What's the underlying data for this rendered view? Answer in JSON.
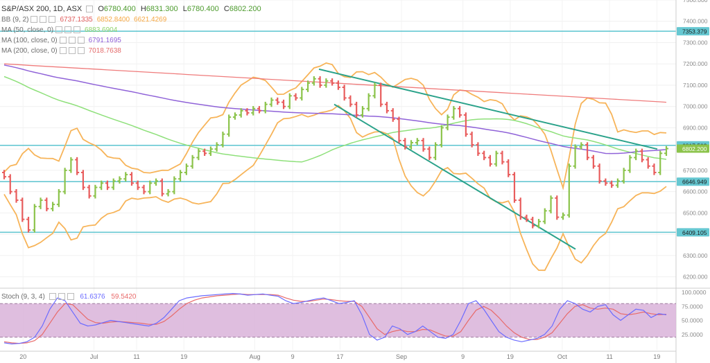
{
  "header": {
    "symbol": "S&P/ASX 200, 1D, ASX",
    "open_label": "O",
    "open": "6780.400",
    "high_label": "H",
    "high": "6831.300",
    "low_label": "L",
    "low": "6780.400",
    "close_label": "C",
    "close": "6802.200"
  },
  "indicators": [
    {
      "label": "BB (9, 2)",
      "values": [
        "6737.1335",
        "6852.8400",
        "6621.4269"
      ],
      "colors": [
        "#e05a5a",
        "#f5a742",
        "#f5a742"
      ]
    },
    {
      "label": "MA (50, close, 0)",
      "values": [
        "6883.6904"
      ],
      "colors": [
        "#8fd26b"
      ]
    },
    {
      "label": "MA (100, close, 0)",
      "values": [
        "6791.1695"
      ],
      "colors": [
        "#8e5ed6"
      ]
    },
    {
      "label": "MA (200, close, 0)",
      "values": [
        "7018.7638"
      ],
      "colors": [
        "#e46a6a"
      ]
    }
  ],
  "stoch_legend": {
    "label": "Stoch (9, 3, 4)",
    "k": "61.6376",
    "d": "59.5420"
  },
  "colors": {
    "up": "#8bc34a",
    "down": "#e85c5c",
    "bb": "#f7b459",
    "ma50": "#8ee07a",
    "ma100": "#8f62d8",
    "ma200": "#ef7b7b",
    "hline": "#66c8d2",
    "trend": "#2aa28a",
    "stoch_fill": "#d9b3d9",
    "stoch_k": "#6b6bff",
    "stoch_d": "#e86a6a",
    "last_price": "#8bc34a"
  },
  "chart_data": [
    {
      "type": "candlestick",
      "title": "S&P/ASX 200, 1D, ASX",
      "ylim": [
        6150,
        7500
      ],
      "y_ticks": [
        "6200.000",
        "6300.000",
        "6400.000",
        "6500.000",
        "6600.000",
        "6700.000",
        "6800.000",
        "6900.000",
        "7000.000",
        "7100.000",
        "7200.000",
        "7300.000",
        "7400.000",
        "7500.000"
      ],
      "x_ticks": [
        "20",
        "Jul",
        "11",
        "19",
        "Aug",
        "9",
        "17",
        "Sep",
        "9",
        "19",
        "Oct",
        "11",
        "19"
      ],
      "price_labels": [
        {
          "label": "7353.379",
          "value": 7353.379
        },
        {
          "label": "6817.503",
          "value": 6817.503
        },
        {
          "label": "6802.200",
          "value": 6802.2
        },
        {
          "label": "6646.949",
          "value": 6646.949
        },
        {
          "label": "6409.105",
          "value": 6409.105
        }
      ],
      "horizontal_lines": [
        7353.379,
        6817.503,
        6646.949,
        6409.105
      ],
      "closes": [
        6670,
        6600,
        6560,
        6470,
        6420,
        6530,
        6560,
        6520,
        6540,
        6600,
        6700,
        6750,
        6690,
        6620,
        6580,
        6620,
        6640,
        6620,
        6650,
        6660,
        6680,
        6640,
        6620,
        6600,
        6640,
        6650,
        6590,
        6600,
        6660,
        6690,
        6720,
        6760,
        6790,
        6780,
        6800,
        6820,
        6870,
        6950,
        6960,
        6980,
        6970,
        6990,
        6980,
        7010,
        7030,
        7020,
        7000,
        7050,
        7040,
        7080,
        7110,
        7130,
        7100,
        7120,
        7110,
        7090,
        7040,
        7010,
        6960,
        6990,
        7050,
        7100,
        7010,
        6980,
        6940,
        6840,
        6810,
        6830,
        6840,
        6800,
        6760,
        6820,
        6900,
        6950,
        6990,
        6960,
        6870,
        6820,
        6780,
        6760,
        6730,
        6780,
        6740,
        6680,
        6560,
        6480,
        6470,
        6440,
        6460,
        6510,
        6570,
        6480,
        6490,
        6720,
        6810,
        6820,
        6760,
        6720,
        6650,
        6640,
        6630,
        6650,
        6700,
        6760,
        6790,
        6750,
        6720,
        6690,
        6780,
        6802.2
      ],
      "opens_note": "open equals previous close",
      "bb_mid": [
        6640,
        6630,
        6610,
        6590,
        6570,
        6560,
        6560,
        6570,
        6580,
        6600,
        6620,
        6630,
        6640,
        6640,
        6635,
        6630,
        6635,
        6630,
        6630,
        6635,
        6640,
        6640,
        6635,
        6630,
        6630,
        6635,
        6630,
        6625,
        6640,
        6650,
        6670,
        6690,
        6710,
        6730,
        6750,
        6770,
        6800,
        6830,
        6860,
        6890,
        6910,
        6930,
        6950,
        6970,
        6980,
        6990,
        7000,
        7010,
        7020,
        7040,
        7050,
        7070,
        7080,
        7090,
        7090,
        7080,
        7060,
        7040,
        7020,
        7010,
        7010,
        7020,
        7010,
        6990,
        6970,
        6930,
        6900,
        6880,
        6860,
        6840,
        6820,
        6820,
        6830,
        6850,
        6870,
        6880,
        6880,
        6860,
        6840,
        6820,
        6800,
        6790,
        6780,
        6760,
        6720,
        6680,
        6640,
        6600,
        6570,
        6550,
        6540,
        6520,
        6510,
        6550,
        6600,
        6640,
        6670,
        6690,
        6700,
        6710,
        6710,
        6700,
        6710,
        6720,
        6730,
        6740,
        6740,
        6730,
        6740,
        6750
      ]
    },
    {
      "type": "line",
      "title": "Stoch (9, 3, 4)",
      "ylim": [
        0,
        100
      ],
      "y_ticks": [
        "25.0000",
        "50.0000",
        "75.0000",
        "100.0000"
      ],
      "bands": [
        20,
        80
      ],
      "k": [
        10,
        8,
        9,
        12,
        20,
        40,
        70,
        90,
        85,
        65,
        45,
        40,
        42,
        46,
        50,
        48,
        46,
        44,
        42,
        40,
        45,
        55,
        70,
        85,
        90,
        92,
        94,
        95,
        96,
        97,
        98,
        97,
        95,
        96,
        97,
        95,
        93,
        85,
        80,
        82,
        85,
        88,
        90,
        85,
        80,
        82,
        85,
        60,
        25,
        15,
        20,
        40,
        35,
        25,
        30,
        40,
        30,
        20,
        18,
        25,
        50,
        80,
        85,
        70,
        50,
        30,
        20,
        15,
        12,
        15,
        18,
        25,
        40,
        70,
        85,
        80,
        70,
        65,
        75,
        78,
        60,
        50,
        60,
        70,
        68,
        55,
        62,
        60
      ],
      "d": [
        12,
        10,
        9,
        10,
        14,
        25,
        45,
        65,
        80,
        78,
        65,
        52,
        46,
        45,
        47,
        48,
        47,
        46,
        45,
        43,
        43,
        48,
        58,
        70,
        80,
        86,
        90,
        92,
        94,
        95,
        96,
        97,
        96,
        96,
        96,
        96,
        95,
        90,
        86,
        84,
        84,
        86,
        88,
        87,
        85,
        84,
        84,
        75,
        55,
        35,
        25,
        30,
        33,
        30,
        30,
        34,
        33,
        27,
        22,
        22,
        30,
        50,
        68,
        75,
        68,
        55,
        40,
        28,
        20,
        16,
        16,
        20,
        28,
        45,
        62,
        75,
        78,
        72,
        70,
        72,
        70,
        62,
        60,
        62,
        65,
        62,
        60,
        61
      ]
    }
  ]
}
